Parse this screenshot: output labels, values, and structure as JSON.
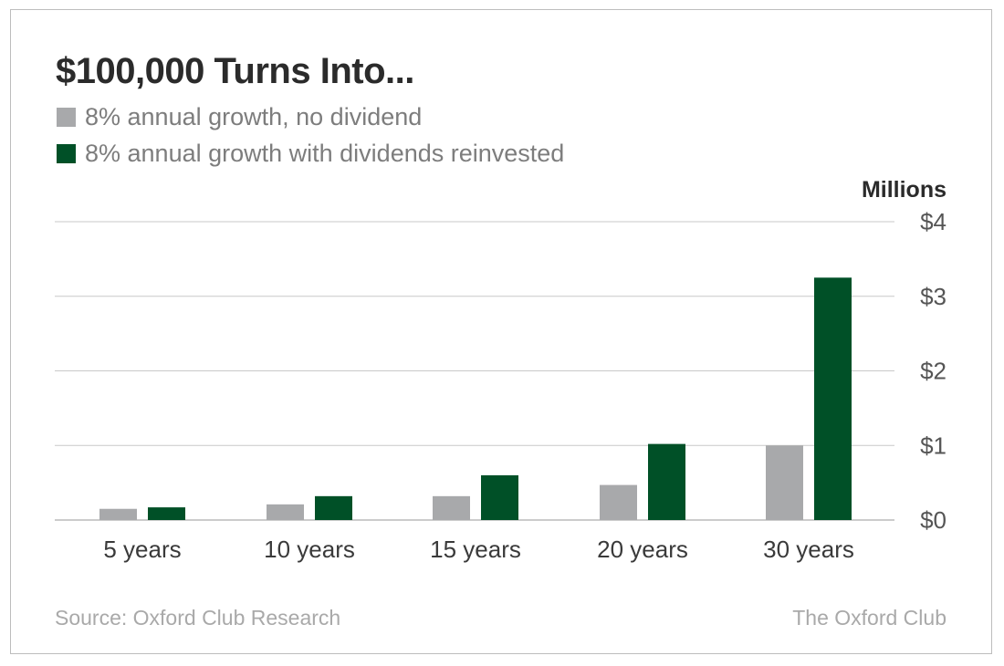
{
  "chart_data": {
    "type": "bar",
    "title": "$100,000 Turns Into...",
    "categories": [
      "5 years",
      "10 years",
      "15 years",
      "20 years",
      "30 years"
    ],
    "series": [
      {
        "name": "8% annual growth, no dividend",
        "color": "#a8a9ab",
        "values": [
          0.15,
          0.21,
          0.32,
          0.47,
          1.0
        ]
      },
      {
        "name": "8% annual growth with dividends reinvested",
        "color": "#005027",
        "values": [
          0.17,
          0.32,
          0.6,
          1.02,
          3.25
        ]
      }
    ],
    "ylabel": "Millions",
    "yticks": [
      0,
      1,
      2,
      3,
      4
    ],
    "ytick_labels": [
      "$0",
      "$1",
      "$2",
      "$3",
      "$4"
    ],
    "ylim": [
      0,
      4
    ],
    "grid": true,
    "legend_placement": "top-left",
    "axis_side": "right"
  },
  "footer": {
    "source": "Source: Oxford Club Research",
    "brand": "The Oxford Club"
  }
}
